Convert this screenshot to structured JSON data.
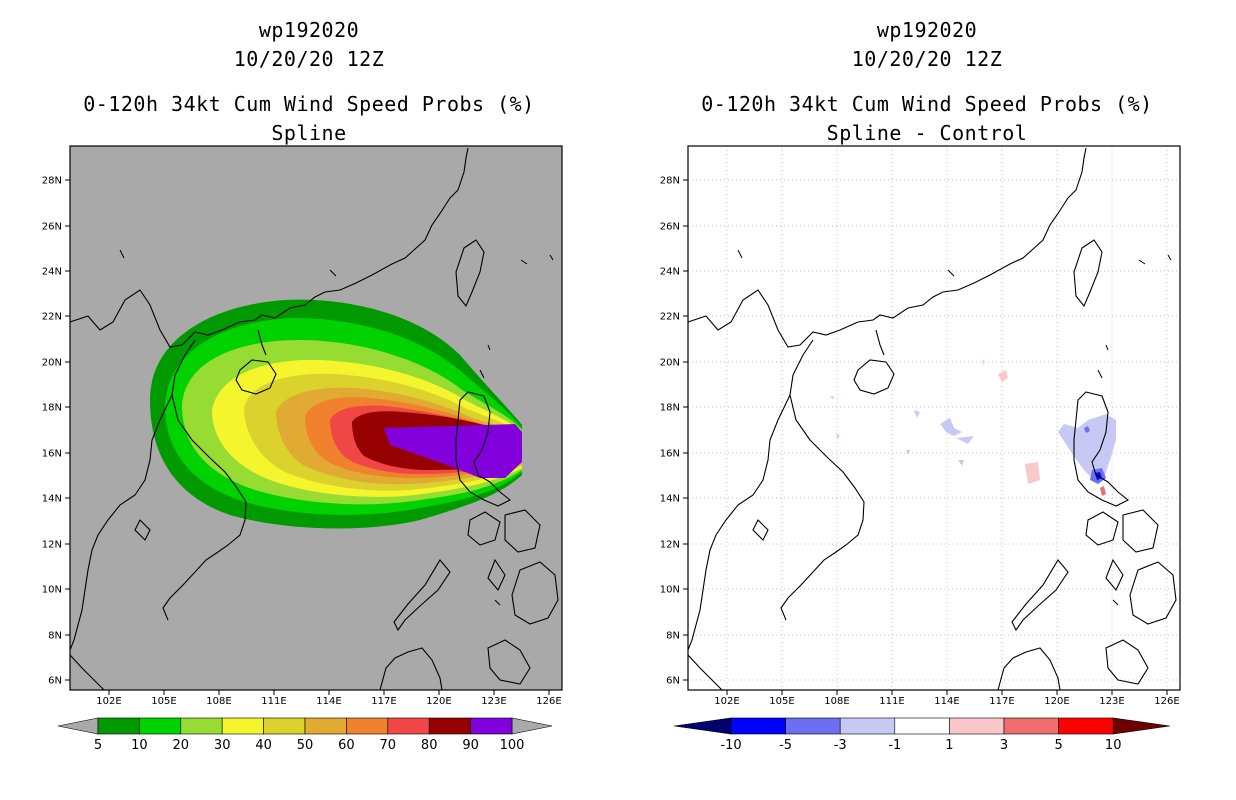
{
  "colors": {
    "land_bg": "#a9a9a9",
    "coast": "#000000",
    "prob_fills": [
      "#009a00",
      "#00d200",
      "#96dc32",
      "#f5f52d",
      "#dcd22d",
      "#e1aa32",
      "#f0822d",
      "#f04646",
      "#960000",
      "#8200dc"
    ],
    "diff_fills": [
      "#00006e",
      "#0000ff",
      "#6e6ef0",
      "#c8c8f5",
      "#ffffff",
      "#fac8c8",
      "#f06e6e",
      "#ff0000",
      "#6e0000"
    ]
  },
  "left": {
    "storm_id": "wp192020",
    "datetime": "10/20/20 12Z",
    "product": "0-120h 34kt Cum Wind Speed Probs (%)",
    "subtitle": "Spline",
    "colorbar_labels": [
      "5",
      "10",
      "20",
      "30",
      "40",
      "50",
      "60",
      "70",
      "80",
      "90",
      "100"
    ]
  },
  "right": {
    "storm_id": "wp192020",
    "datetime": "10/20/20 12Z",
    "product": "0-120h 34kt Cum Wind Speed Probs (%)",
    "subtitle": "Spline - Control",
    "colorbar_labels": [
      "-10",
      "-5",
      "-3",
      "-1",
      "1",
      "3",
      "5",
      "10"
    ]
  },
  "lat_labels": [
    "28N",
    "26N",
    "24N",
    "22N",
    "20N",
    "18N",
    "16N",
    "14N",
    "12N",
    "10N",
    "8N",
    "6N"
  ],
  "lon_labels": [
    "102E",
    "105E",
    "108E",
    "111E",
    "114E",
    "117E",
    "120E",
    "123E",
    "126E"
  ]
}
